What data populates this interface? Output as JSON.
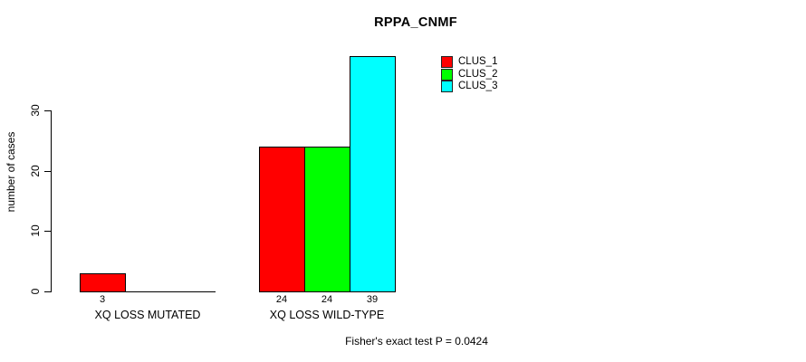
{
  "chart_data": {
    "type": "bar",
    "title": "RPPA_CNMF",
    "xlabel": "",
    "ylabel": "number of cases",
    "ylim": [
      0,
      30
    ],
    "yticks": [
      0,
      10,
      20,
      30
    ],
    "grid": false,
    "legend_position": "top-right",
    "categories": [
      "XQ LOSS MUTATED",
      "XQ LOSS WILD-TYPE"
    ],
    "series": [
      {
        "name": "CLUS_1",
        "color": "#ff0000",
        "values": [
          3,
          24
        ]
      },
      {
        "name": "CLUS_2",
        "color": "#00ff00",
        "values": [
          0,
          24
        ]
      },
      {
        "name": "CLUS_3",
        "color": "#00ffff",
        "values": [
          0,
          39
        ]
      }
    ]
  },
  "footer": {
    "note": "Fisher's exact test P = 0.0424"
  },
  "colors": {
    "axis": "#000000",
    "background": "#ffffff",
    "clus_1": "#ff0000",
    "clus_2": "#00ff00",
    "clus_3": "#00ffff"
  }
}
